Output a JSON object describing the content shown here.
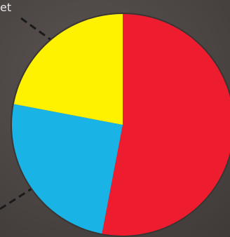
{
  "label": "et",
  "chart_data": {
    "type": "pie",
    "title": "",
    "start_angle_deg": 0,
    "direction": "clockwise",
    "slices": [
      {
        "value": 53,
        "color": "#ed1c2e"
      },
      {
        "value": 25,
        "color": "#19b3e6"
      },
      {
        "value": 22,
        "color": "#fff200"
      }
    ],
    "legend": "none"
  }
}
